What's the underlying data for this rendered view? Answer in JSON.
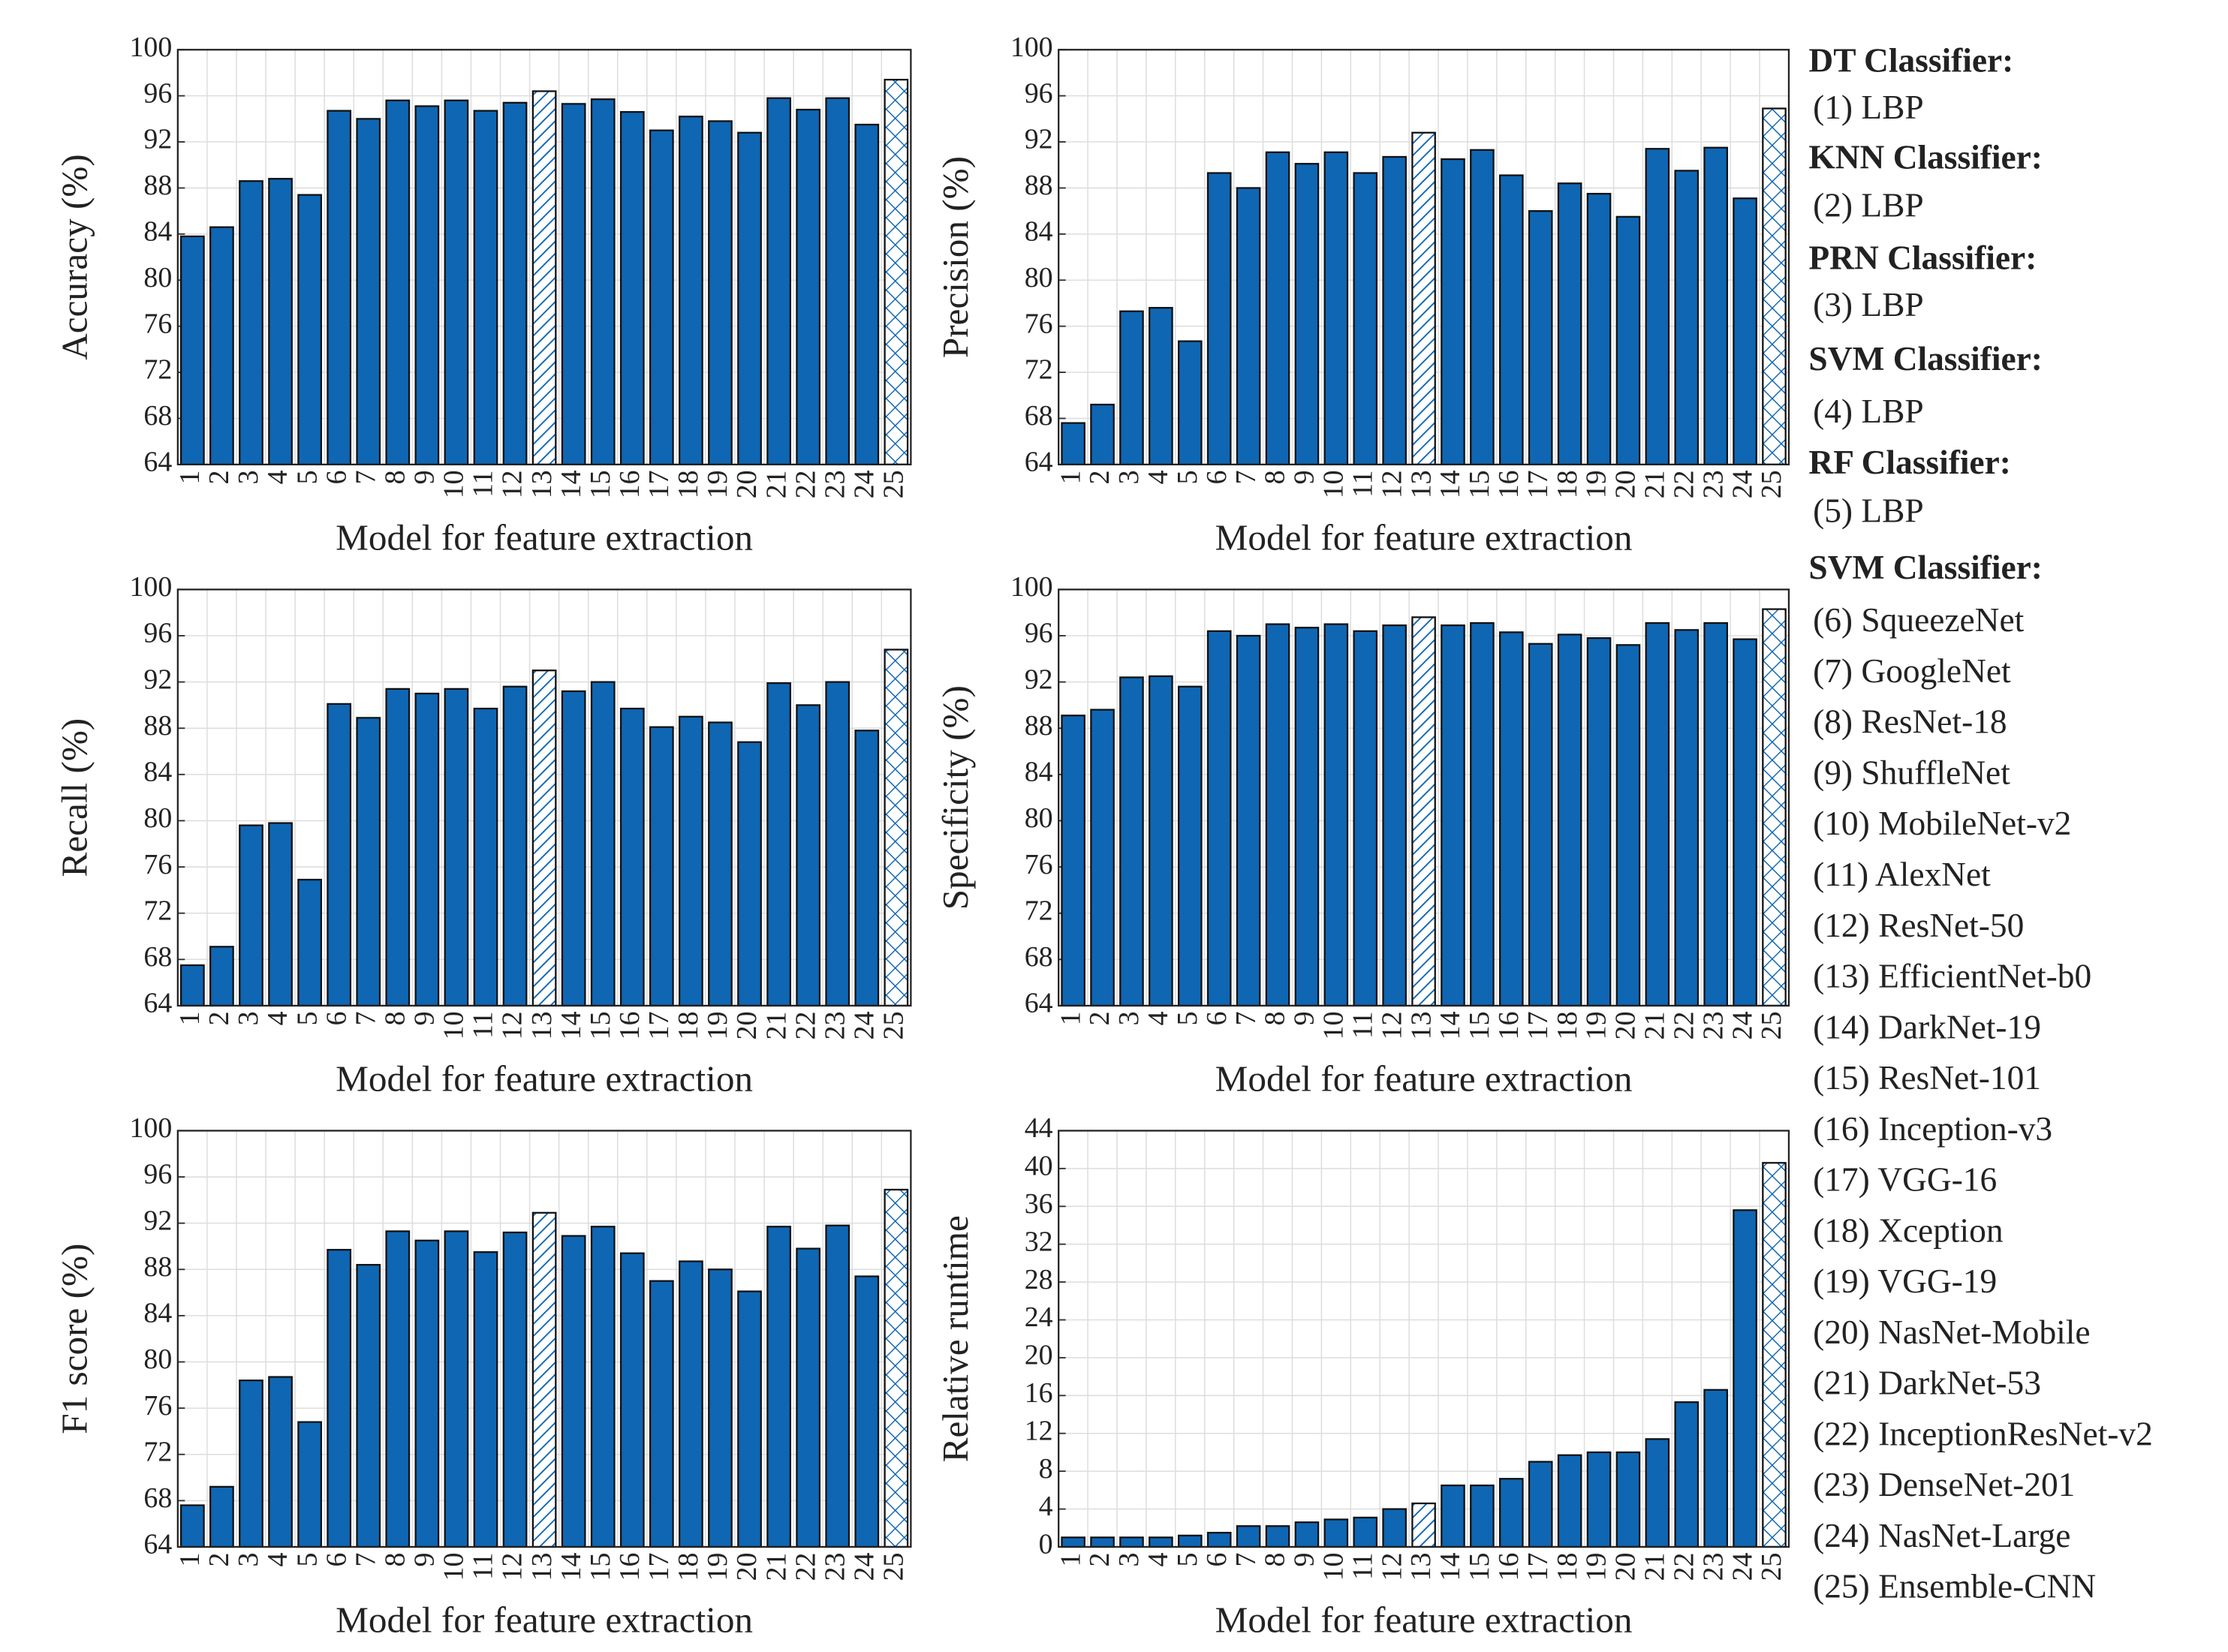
{
  "chart_data": [
    {
      "type": "bar",
      "ylabel": "Accuracy (%)",
      "xlabel": "Model for feature extraction",
      "categories": [
        "1",
        "2",
        "3",
        "4",
        "5",
        "6",
        "7",
        "8",
        "9",
        "10",
        "11",
        "12",
        "13",
        "14",
        "15",
        "16",
        "17",
        "18",
        "19",
        "20",
        "21",
        "22",
        "23",
        "24",
        "25"
      ],
      "values": [
        83.8,
        84.6,
        88.6,
        88.8,
        87.4,
        94.7,
        94.0,
        95.6,
        95.1,
        95.6,
        94.7,
        95.4,
        96.4,
        95.3,
        95.7,
        94.6,
        93.0,
        94.2,
        93.8,
        92.8,
        95.8,
        94.8,
        95.8,
        93.5,
        97.4
      ],
      "color": "#0f66b3",
      "ylim": [
        64,
        100
      ],
      "yticks": [
        64,
        68,
        72,
        76,
        80,
        84,
        88,
        92,
        96,
        100
      ],
      "grid": true,
      "bar_fill": [
        "solid",
        "solid",
        "solid",
        "solid",
        "solid",
        "solid",
        "solid",
        "solid",
        "solid",
        "solid",
        "solid",
        "solid",
        "hatch",
        "solid",
        "solid",
        "solid",
        "solid",
        "solid",
        "solid",
        "solid",
        "solid",
        "solid",
        "solid",
        "solid",
        "crosshatch"
      ]
    },
    {
      "type": "bar",
      "ylabel": "Precision (%)",
      "xlabel": "Model for feature extraction",
      "categories": [
        "1",
        "2",
        "3",
        "4",
        "5",
        "6",
        "7",
        "8",
        "9",
        "10",
        "11",
        "12",
        "13",
        "14",
        "15",
        "16",
        "17",
        "18",
        "19",
        "20",
        "21",
        "22",
        "23",
        "24",
        "25"
      ],
      "values": [
        67.6,
        69.2,
        77.3,
        77.6,
        74.7,
        89.3,
        88.0,
        91.1,
        90.1,
        91.1,
        89.3,
        90.7,
        92.8,
        90.5,
        91.3,
        89.1,
        86.0,
        88.4,
        87.5,
        85.5,
        91.4,
        89.5,
        91.5,
        87.1,
        94.9
      ],
      "color": "#0f66b3",
      "ylim": [
        64,
        100
      ],
      "yticks": [
        64,
        68,
        72,
        76,
        80,
        84,
        88,
        92,
        96,
        100
      ],
      "grid": true,
      "bar_fill": [
        "solid",
        "solid",
        "solid",
        "solid",
        "solid",
        "solid",
        "solid",
        "solid",
        "solid",
        "solid",
        "solid",
        "solid",
        "hatch",
        "solid",
        "solid",
        "solid",
        "solid",
        "solid",
        "solid",
        "solid",
        "solid",
        "solid",
        "solid",
        "solid",
        "crosshatch"
      ]
    },
    {
      "type": "bar",
      "ylabel": "Recall (%)",
      "xlabel": "Model for feature extraction",
      "categories": [
        "1",
        "2",
        "3",
        "4",
        "5",
        "6",
        "7",
        "8",
        "9",
        "10",
        "11",
        "12",
        "13",
        "14",
        "15",
        "16",
        "17",
        "18",
        "19",
        "20",
        "21",
        "22",
        "23",
        "24",
        "25"
      ],
      "values": [
        67.5,
        69.1,
        79.6,
        79.8,
        74.9,
        90.1,
        88.9,
        91.4,
        91.0,
        91.4,
        89.7,
        91.6,
        93.0,
        91.2,
        92.0,
        89.7,
        88.1,
        89.0,
        88.5,
        86.8,
        91.9,
        90.0,
        92.0,
        87.8,
        94.8
      ],
      "color": "#0f66b3",
      "ylim": [
        64,
        100
      ],
      "yticks": [
        64,
        68,
        72,
        76,
        80,
        84,
        88,
        92,
        96,
        100
      ],
      "grid": true,
      "bar_fill": [
        "solid",
        "solid",
        "solid",
        "solid",
        "solid",
        "solid",
        "solid",
        "solid",
        "solid",
        "solid",
        "solid",
        "solid",
        "hatch",
        "solid",
        "solid",
        "solid",
        "solid",
        "solid",
        "solid",
        "solid",
        "solid",
        "solid",
        "solid",
        "solid",
        "crosshatch"
      ]
    },
    {
      "type": "bar",
      "ylabel": "Specificity (%)",
      "xlabel": "Model for feature extraction",
      "categories": [
        "1",
        "2",
        "3",
        "4",
        "5",
        "6",
        "7",
        "8",
        "9",
        "10",
        "11",
        "12",
        "13",
        "14",
        "15",
        "16",
        "17",
        "18",
        "19",
        "20",
        "21",
        "22",
        "23",
        "24",
        "25"
      ],
      "values": [
        89.1,
        89.6,
        92.4,
        92.5,
        91.6,
        96.4,
        96.0,
        97.0,
        96.7,
        97.0,
        96.4,
        96.9,
        97.6,
        96.9,
        97.1,
        96.3,
        95.3,
        96.1,
        95.8,
        95.2,
        97.1,
        96.5,
        97.1,
        95.7,
        98.3
      ],
      "color": "#0f66b3",
      "ylim": [
        64,
        100
      ],
      "yticks": [
        64,
        68,
        72,
        76,
        80,
        84,
        88,
        92,
        96,
        100
      ],
      "grid": true,
      "bar_fill": [
        "solid",
        "solid",
        "solid",
        "solid",
        "solid",
        "solid",
        "solid",
        "solid",
        "solid",
        "solid",
        "solid",
        "solid",
        "hatch",
        "solid",
        "solid",
        "solid",
        "solid",
        "solid",
        "solid",
        "solid",
        "solid",
        "solid",
        "solid",
        "solid",
        "crosshatch"
      ]
    },
    {
      "type": "bar",
      "ylabel": "F1 score (%)",
      "xlabel": "Model for feature extraction",
      "categories": [
        "1",
        "2",
        "3",
        "4",
        "5",
        "6",
        "7",
        "8",
        "9",
        "10",
        "11",
        "12",
        "13",
        "14",
        "15",
        "16",
        "17",
        "18",
        "19",
        "20",
        "21",
        "22",
        "23",
        "24",
        "25"
      ],
      "values": [
        67.6,
        69.2,
        78.4,
        78.7,
        74.8,
        89.7,
        88.4,
        91.3,
        90.5,
        91.3,
        89.5,
        91.2,
        92.9,
        90.9,
        91.7,
        89.4,
        87.0,
        88.7,
        88.0,
        86.1,
        91.7,
        89.8,
        91.8,
        87.4,
        94.9
      ],
      "color": "#0f66b3",
      "ylim": [
        64,
        100
      ],
      "yticks": [
        64,
        68,
        72,
        76,
        80,
        84,
        88,
        92,
        96,
        100
      ],
      "grid": true,
      "bar_fill": [
        "solid",
        "solid",
        "solid",
        "solid",
        "solid",
        "solid",
        "solid",
        "solid",
        "solid",
        "solid",
        "solid",
        "solid",
        "hatch",
        "solid",
        "solid",
        "solid",
        "solid",
        "solid",
        "solid",
        "solid",
        "solid",
        "solid",
        "solid",
        "solid",
        "crosshatch"
      ]
    },
    {
      "type": "bar",
      "ylabel": "Relative runtime",
      "xlabel": "Model for feature extraction",
      "categories": [
        "1",
        "2",
        "3",
        "4",
        "5",
        "6",
        "7",
        "8",
        "9",
        "10",
        "11",
        "12",
        "13",
        "14",
        "15",
        "16",
        "17",
        "18",
        "19",
        "20",
        "21",
        "22",
        "23",
        "24",
        "25"
      ],
      "values": [
        1.0,
        1.0,
        1.0,
        1.0,
        1.2,
        1.5,
        2.2,
        2.2,
        2.6,
        2.9,
        3.1,
        4.0,
        4.6,
        6.5,
        6.5,
        7.2,
        9.0,
        9.7,
        10.0,
        10.0,
        11.4,
        15.3,
        16.6,
        35.6,
        40.6
      ],
      "color": "#0f66b3",
      "ylim": [
        0,
        44
      ],
      "yticks": [
        0,
        4,
        8,
        12,
        16,
        20,
        24,
        28,
        32,
        36,
        40,
        44
      ],
      "grid": true,
      "bar_fill": [
        "solid",
        "solid",
        "solid",
        "solid",
        "solid",
        "solid",
        "solid",
        "solid",
        "solid",
        "solid",
        "solid",
        "solid",
        "hatch",
        "solid",
        "solid",
        "solid",
        "solid",
        "solid",
        "solid",
        "solid",
        "solid",
        "solid",
        "solid",
        "solid",
        "crosshatch"
      ]
    }
  ],
  "legend": [
    {
      "heading": "DT Classifier:",
      "items": [
        "(1) LBP"
      ]
    },
    {
      "heading": "KNN Classifier:",
      "items": [
        "(2) LBP"
      ]
    },
    {
      "heading": "PRN Classifier:",
      "items": [
        "(3) LBP"
      ]
    },
    {
      "heading": "SVM Classifier:",
      "items": [
        "(4) LBP"
      ]
    },
    {
      "heading": "RF Classifier:",
      "items": [
        "(5) LBP"
      ]
    },
    {
      "heading": "SVM Classifier:",
      "items": [
        "(6) SqueezeNet",
        "(7) GoogleNet",
        "(8) ResNet-18",
        "(9) ShuffleNet",
        "(10) MobileNet-v2",
        "(11) AlexNet",
        "(12) ResNet-50",
        "(13) EfficientNet-b0",
        "(14) DarkNet-19",
        "(15) ResNet-101",
        "(16) Inception-v3",
        "(17) VGG-16",
        "(18) Xception",
        "(19) VGG-19",
        "(20) NasNet-Mobile",
        "(21) DarkNet-53",
        "(22) InceptionResNet-v2",
        "(23) DenseNet-201",
        "(24) NasNet-Large",
        "(25) Ensemble-CNN"
      ]
    }
  ]
}
